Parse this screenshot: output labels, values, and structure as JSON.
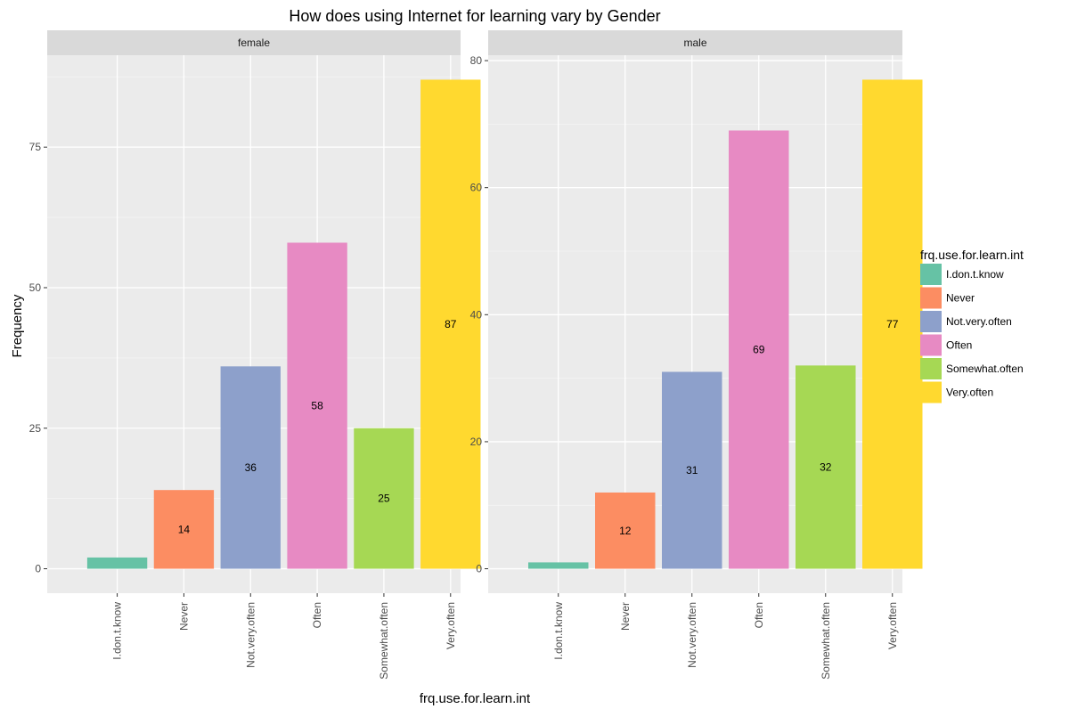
{
  "chart_data": {
    "type": "bar",
    "title": "How does using Internet for learning vary by Gender",
    "xlabel": "frq.use.for.learn.int",
    "ylabel": "Frequency",
    "categories": [
      "I.don.t.know",
      "Never",
      "Not.very.often",
      "Often",
      "Somewhat.often",
      "Very.often"
    ],
    "colors": [
      "#66c2a5",
      "#fc8d62",
      "#8da0cb",
      "#e78ac3",
      "#a6d854",
      "#ffd92f"
    ],
    "legend": {
      "title": "frq.use.for.learn.int",
      "position": "right",
      "entries": [
        "I.don.t.know",
        "Never",
        "Not.very.often",
        "Often",
        "Somewhat.often",
        "Very.often"
      ]
    },
    "panels": [
      {
        "strip": "female",
        "values": [
          2,
          14,
          36,
          58,
          25,
          87
        ],
        "labels": [
          "",
          "14",
          "36",
          "58",
          "25",
          "87"
        ],
        "ylim": [
          -4.35,
          91.35
        ],
        "yticks": [
          0,
          25,
          50,
          75
        ],
        "ytick_labels": [
          "0",
          "25",
          "50",
          "75"
        ]
      },
      {
        "strip": "male",
        "values": [
          1,
          12,
          31,
          69,
          32,
          77
        ],
        "labels": [
          "",
          "12",
          "31",
          "69",
          "32",
          "77"
        ],
        "ylim": [
          -3.85,
          80.85
        ],
        "yticks": [
          0,
          20,
          40,
          60,
          80
        ],
        "ytick_labels": [
          "0",
          "20",
          "40",
          "60",
          "80"
        ]
      }
    ],
    "grid": true
  }
}
